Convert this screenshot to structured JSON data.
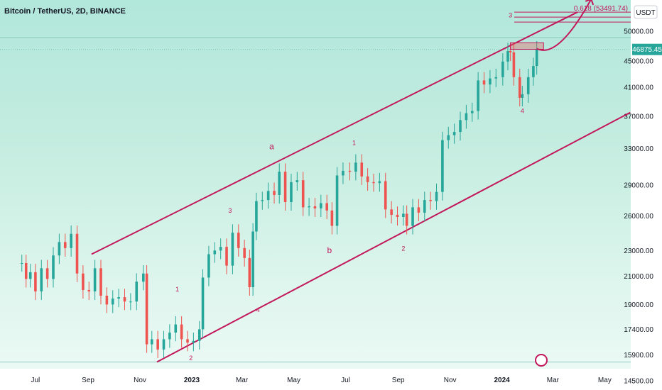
{
  "header": {
    "symbol_title": "Bitcoin / TetherUS, 2D, BINANCE",
    "currency_button": "USDT"
  },
  "colors": {
    "up": "#26a69a",
    "down": "#ef5350",
    "annotation": "#c2185b",
    "channel": "#c2185b",
    "current_price_tag": "#26a69a",
    "fib_line": "#c2185b"
  },
  "chart_data": {
    "type": "candlestick",
    "symbol": "Bitcoin / TetherUS",
    "interval": "2D",
    "exchange": "BINANCE",
    "y_axis_ticks": [
      50000,
      45000,
      41000,
      37000,
      33000,
      29000,
      26000,
      23000,
      21000,
      19000,
      17400,
      15900,
      14500
    ],
    "y_axis_scale": "log",
    "x_axis_ticks": [
      "Jul",
      "Sep",
      "Nov",
      "2023",
      "Mar",
      "May",
      "Jul",
      "Sep",
      "Nov",
      "2024",
      "Mar",
      "May"
    ],
    "last_price": "46875.45",
    "last_price_value": 46875.45,
    "horizontal_lines": [
      {
        "label": "0.618 (53491.74)",
        "value": 53491.74
      }
    ],
    "price_series": [
      {
        "date": "2022-06-15",
        "close": 22000
      },
      {
        "date": "2022-06-20",
        "close": 20800
      },
      {
        "date": "2022-06-25",
        "close": 21300
      },
      {
        "date": "2022-07-01",
        "close": 19900
      },
      {
        "date": "2022-07-08",
        "close": 21600
      },
      {
        "date": "2022-07-15",
        "close": 20800
      },
      {
        "date": "2022-07-22",
        "close": 22600
      },
      {
        "date": "2022-07-29",
        "close": 23700
      },
      {
        "date": "2022-08-05",
        "close": 23200
      },
      {
        "date": "2022-08-12",
        "close": 24400
      },
      {
        "date": "2022-08-19",
        "close": 21200
      },
      {
        "date": "2022-08-26",
        "close": 20000
      },
      {
        "date": "2022-09-02",
        "close": 19900
      },
      {
        "date": "2022-09-09",
        "close": 21600
      },
      {
        "date": "2022-09-16",
        "close": 19600
      },
      {
        "date": "2022-09-23",
        "close": 19000
      },
      {
        "date": "2022-09-30",
        "close": 19400
      },
      {
        "date": "2022-10-07",
        "close": 19500
      },
      {
        "date": "2022-10-14",
        "close": 19200
      },
      {
        "date": "2022-10-21",
        "close": 19200
      },
      {
        "date": "2022-10-28",
        "close": 20600
      },
      {
        "date": "2022-11-05",
        "close": 21200
      },
      {
        "date": "2022-11-09",
        "close": 16500
      },
      {
        "date": "2022-11-15",
        "close": 16800
      },
      {
        "date": "2022-11-22",
        "close": 16200
      },
      {
        "date": "2022-11-29",
        "close": 16800
      },
      {
        "date": "2022-12-06",
        "close": 17200
      },
      {
        "date": "2022-12-13",
        "close": 17700
      },
      {
        "date": "2022-12-20",
        "close": 16800
      },
      {
        "date": "2022-12-27",
        "close": 16600
      },
      {
        "date": "2023-01-03",
        "close": 16700
      },
      {
        "date": "2023-01-10",
        "close": 17400
      },
      {
        "date": "2023-01-14",
        "close": 20900
      },
      {
        "date": "2023-01-21",
        "close": 22700
      },
      {
        "date": "2023-01-28",
        "close": 23000
      },
      {
        "date": "2023-02-04",
        "close": 23300
      },
      {
        "date": "2023-02-11",
        "close": 21800
      },
      {
        "date": "2023-02-18",
        "close": 24500
      },
      {
        "date": "2023-02-25",
        "close": 23200
      },
      {
        "date": "2023-03-04",
        "close": 22400
      },
      {
        "date": "2023-03-10",
        "close": 20200
      },
      {
        "date": "2023-03-14",
        "close": 24600
      },
      {
        "date": "2023-03-18",
        "close": 27400
      },
      {
        "date": "2023-03-25",
        "close": 27500
      },
      {
        "date": "2023-04-01",
        "close": 28400
      },
      {
        "date": "2023-04-08",
        "close": 28000
      },
      {
        "date": "2023-04-14",
        "close": 30400
      },
      {
        "date": "2023-04-21",
        "close": 27300
      },
      {
        "date": "2023-04-28",
        "close": 29300
      },
      {
        "date": "2023-05-05",
        "close": 29500
      },
      {
        "date": "2023-05-12",
        "close": 26800
      },
      {
        "date": "2023-05-19",
        "close": 26900
      },
      {
        "date": "2023-05-26",
        "close": 26700
      },
      {
        "date": "2023-06-02",
        "close": 27200
      },
      {
        "date": "2023-06-09",
        "close": 26500
      },
      {
        "date": "2023-06-15",
        "close": 25100
      },
      {
        "date": "2023-06-21",
        "close": 30000
      },
      {
        "date": "2023-06-28",
        "close": 30500
      },
      {
        "date": "2023-07-06",
        "close": 30400
      },
      {
        "date": "2023-07-13",
        "close": 31400
      },
      {
        "date": "2023-07-20",
        "close": 29900
      },
      {
        "date": "2023-07-27",
        "close": 29300
      },
      {
        "date": "2023-08-03",
        "close": 29200
      },
      {
        "date": "2023-08-10",
        "close": 29400
      },
      {
        "date": "2023-08-17",
        "close": 26600
      },
      {
        "date": "2023-08-24",
        "close": 26100
      },
      {
        "date": "2023-08-31",
        "close": 25900
      },
      {
        "date": "2023-09-07",
        "close": 26200
      },
      {
        "date": "2023-09-11",
        "close": 25100
      },
      {
        "date": "2023-09-18",
        "close": 26800
      },
      {
        "date": "2023-09-25",
        "close": 26300
      },
      {
        "date": "2023-10-02",
        "close": 27500
      },
      {
        "date": "2023-10-09",
        "close": 27400
      },
      {
        "date": "2023-10-16",
        "close": 28300
      },
      {
        "date": "2023-10-23",
        "close": 34000
      },
      {
        "date": "2023-10-30",
        "close": 34600
      },
      {
        "date": "2023-11-06",
        "close": 35000
      },
      {
        "date": "2023-11-13",
        "close": 36500
      },
      {
        "date": "2023-11-20",
        "close": 37400
      },
      {
        "date": "2023-11-27",
        "close": 37700
      },
      {
        "date": "2023-12-04",
        "close": 42000
      },
      {
        "date": "2023-12-11",
        "close": 41400
      },
      {
        "date": "2023-12-18",
        "close": 42300
      },
      {
        "date": "2023-12-25",
        "close": 42500
      },
      {
        "date": "2024-01-02",
        "close": 44900
      },
      {
        "date": "2024-01-08",
        "close": 46600
      },
      {
        "date": "2024-01-11",
        "close": 46400
      },
      {
        "date": "2024-01-15",
        "close": 42500
      },
      {
        "date": "2024-01-22",
        "close": 39500
      },
      {
        "date": "2024-01-25",
        "close": 40000
      },
      {
        "date": "2024-02-01",
        "close": 42500
      },
      {
        "date": "2024-02-07",
        "close": 44200
      },
      {
        "date": "2024-02-11",
        "close": 46875.45
      }
    ],
    "trendlines": [
      {
        "name": "channel-upper",
        "from": {
          "date": "2022-09-05",
          "price": 22700
        },
        "to": {
          "date": "2024-03-30",
          "price": 53500
        }
      },
      {
        "name": "channel-lower",
        "from": {
          "date": "2022-11-21",
          "price": 15500
        },
        "to": {
          "date": "2024-05-31",
          "price": 37500
        }
      }
    ],
    "wave_labels": [
      {
        "text": "1",
        "date": "2022-12-15",
        "price": 19900
      },
      {
        "text": "2",
        "date": "2022-12-31",
        "price": 15600
      },
      {
        "text": "3",
        "date": "2023-02-15",
        "price": 26300
      },
      {
        "text": "4",
        "date": "2023-03-20",
        "price": 18500
      },
      {
        "text": "a",
        "date": "2023-04-05",
        "price": 32900
      },
      {
        "text": "b",
        "date": "2023-06-12",
        "price": 22800
      },
      {
        "text": "1",
        "date": "2023-07-11",
        "price": 33400
      },
      {
        "text": "2",
        "date": "2023-09-07",
        "price": 23000
      },
      {
        "text": "3",
        "date": "2024-01-11",
        "price": 52500
      },
      {
        "text": "4",
        "date": "2024-01-25",
        "price": 37400
      }
    ],
    "projection_arrow": {
      "from": {
        "date": "2024-02-11",
        "price": 47000
      },
      "to": {
        "date": "2024-04-15",
        "price": 56000
      }
    },
    "resistance_box": {
      "from_date": "2024-01-11",
      "to_date": "2024-02-19",
      "price_top": 48000,
      "price_bottom": 46900
    }
  }
}
